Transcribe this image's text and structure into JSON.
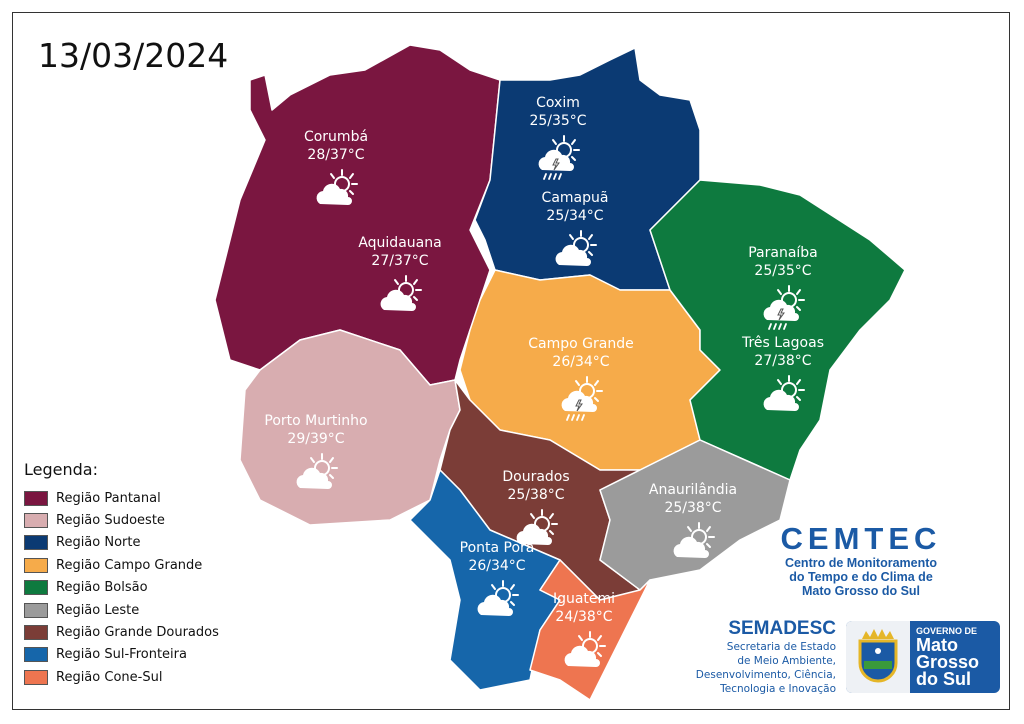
{
  "date": "13/03/2024",
  "colors": {
    "pantanal": "#7a1640",
    "sudoeste": "#d8adb0",
    "norte": "#0b3a73",
    "campo_grande": "#f6ab4a",
    "bolsao": "#0e7a3f",
    "leste": "#9b9b9b",
    "grande_dourados": "#7b3d37",
    "sul_fronteira": "#1666aa",
    "cone_sul": "#ee7550"
  },
  "cities": [
    {
      "name": "Corumbá",
      "temp": "28/37°C",
      "icon": "partly-cloudy"
    },
    {
      "name": "Aquidauana",
      "temp": "27/37°C",
      "icon": "partly-cloudy"
    },
    {
      "name": "Coxim",
      "temp": "25/35°C",
      "icon": "thunderstorm-rain"
    },
    {
      "name": "Camapuã",
      "temp": "25/34°C",
      "icon": "partly-cloudy"
    },
    {
      "name": "Paranaíba",
      "temp": "25/35°C",
      "icon": "thunderstorm-rain"
    },
    {
      "name": "Três Lagoas",
      "temp": "27/38°C",
      "icon": "partly-cloudy"
    },
    {
      "name": "Campo Grande",
      "temp": "26/34°C",
      "icon": "thunderstorm-rain"
    },
    {
      "name": "Porto Murtinho",
      "temp": "29/39°C",
      "icon": "partly-cloudy"
    },
    {
      "name": "Dourados",
      "temp": "25/38°C",
      "icon": "partly-cloudy"
    },
    {
      "name": "Anaurilândia",
      "temp": "25/38°C",
      "icon": "partly-cloudy"
    },
    {
      "name": "Ponta Porã",
      "temp": "26/34°C",
      "icon": "partly-cloudy"
    },
    {
      "name": "Iguatemi",
      "temp": "24/38°C",
      "icon": "partly-cloudy"
    }
  ],
  "legend": {
    "title": "Legenda:",
    "items": [
      {
        "label": "Região Pantanal",
        "color": "#7a1640"
      },
      {
        "label": "Região Sudoeste",
        "color": "#d8adb0"
      },
      {
        "label": "Região Norte",
        "color": "#0b3a73"
      },
      {
        "label": "Região Campo Grande",
        "color": "#f6ab4a"
      },
      {
        "label": "Região Bolsão",
        "color": "#0e7a3f"
      },
      {
        "label": "Região Leste",
        "color": "#9b9b9b"
      },
      {
        "label": "Região Grande Dourados",
        "color": "#7b3d37"
      },
      {
        "label": "Região Sul-Fronteira",
        "color": "#1666aa"
      },
      {
        "label": "Região Cone-Sul",
        "color": "#ee7550"
      }
    ]
  },
  "cemtec": {
    "name": "CEMTEC",
    "line1": "Centro de Monitoramento",
    "line2": "do Tempo e do Clima de",
    "line3": "Mato Grosso do Sul"
  },
  "semadesc": {
    "name": "SEMADESC",
    "line1": "Secretaria de Estado",
    "line2": "de Meio Ambiente,",
    "line3": "Desenvolvimento, Ciência,",
    "line4": "Tecnologia e Inovação"
  },
  "gov": {
    "top": "GOVERNO DE",
    "l1": "Mato",
    "l2": "Grosso",
    "l3": "do Sul"
  }
}
